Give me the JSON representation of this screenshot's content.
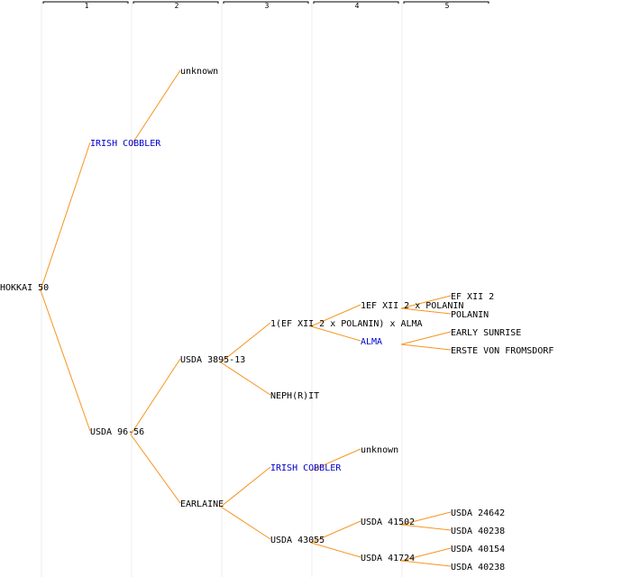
{
  "colors": {
    "edge": "#f7941d",
    "link_text": "#0000cc",
    "plain_text": "#000000",
    "guide": "#ececec"
  },
  "generations": [
    "1",
    "2",
    "3",
    "4",
    "5"
  ],
  "nodes": [
    {
      "id": "n0",
      "label": "HOKKAI 50",
      "gen": 0,
      "link": false
    },
    {
      "id": "n1",
      "label": "IRISH COBBLER",
      "gen": 1,
      "link": true
    },
    {
      "id": "n2",
      "label": "USDA 96-56",
      "gen": 1,
      "link": false
    },
    {
      "id": "n3",
      "label": "unknown",
      "gen": 2,
      "link": false
    },
    {
      "id": "n4",
      "label": "USDA 3895-13",
      "gen": 2,
      "link": false
    },
    {
      "id": "n5",
      "label": "EARLAINE",
      "gen": 2,
      "link": false
    },
    {
      "id": "n6",
      "label": "1(EF XII 2 x POLANIN) x ALMA",
      "gen": 3,
      "link": false
    },
    {
      "id": "n7",
      "label": "NEPH(R)IT",
      "gen": 3,
      "link": false
    },
    {
      "id": "n8",
      "label": "IRISH COBBLER",
      "gen": 3,
      "link": true
    },
    {
      "id": "n9",
      "label": "USDA 43055",
      "gen": 3,
      "link": false
    },
    {
      "id": "n10",
      "label": "1EF XII 2 x POLANIN",
      "gen": 4,
      "link": false
    },
    {
      "id": "n11",
      "label": "ALMA",
      "gen": 4,
      "link": true
    },
    {
      "id": "n12",
      "label": "unknown",
      "gen": 4,
      "link": false
    },
    {
      "id": "n13",
      "label": "USDA 41502",
      "gen": 4,
      "link": false
    },
    {
      "id": "n14",
      "label": "USDA 41724",
      "gen": 4,
      "link": false
    },
    {
      "id": "n15",
      "label": "EF XII 2",
      "gen": 5,
      "link": false
    },
    {
      "id": "n16",
      "label": "POLANIN",
      "gen": 5,
      "link": false
    },
    {
      "id": "n17",
      "label": "EARLY SUNRISE",
      "gen": 5,
      "link": false
    },
    {
      "id": "n18",
      "label": "ERSTE VON FROMSDORF",
      "gen": 5,
      "link": false
    },
    {
      "id": "n19",
      "label": "USDA 24642",
      "gen": 5,
      "link": false
    },
    {
      "id": "n20",
      "label": "USDA 40238",
      "gen": 5,
      "link": false
    },
    {
      "id": "n21",
      "label": "USDA 40154",
      "gen": 5,
      "link": false
    },
    {
      "id": "n22",
      "label": "USDA 40238",
      "gen": 5,
      "link": false
    }
  ],
  "edges": [
    [
      "n0",
      "n1"
    ],
    [
      "n0",
      "n2"
    ],
    [
      "n1",
      "n3"
    ],
    [
      "n2",
      "n4"
    ],
    [
      "n2",
      "n5"
    ],
    [
      "n4",
      "n6"
    ],
    [
      "n4",
      "n7"
    ],
    [
      "n5",
      "n8"
    ],
    [
      "n5",
      "n9"
    ],
    [
      "n6",
      "n10"
    ],
    [
      "n6",
      "n11"
    ],
    [
      "n8",
      "n12"
    ],
    [
      "n9",
      "n13"
    ],
    [
      "n9",
      "n14"
    ],
    [
      "n10",
      "n15"
    ],
    [
      "n10",
      "n16"
    ],
    [
      "n11",
      "n17"
    ],
    [
      "n11",
      "n18"
    ],
    [
      "n13",
      "n19"
    ],
    [
      "n13",
      "n20"
    ],
    [
      "n14",
      "n21"
    ],
    [
      "n14",
      "n22"
    ]
  ]
}
